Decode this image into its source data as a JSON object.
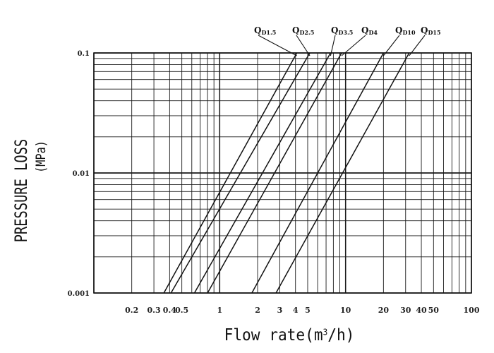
{
  "chart_data": {
    "type": "line",
    "xlabel_text": "Flow rate(m",
    "xlabel_sup": "3",
    "xlabel_tail": "/h)",
    "ylabel_line1": "PRESSURE LOSS",
    "ylabel_line2": "(MPa)",
    "x_scale": "log",
    "y_scale": "log",
    "xlim": [
      0.1,
      100
    ],
    "ylim": [
      0.001,
      0.1
    ],
    "grid": true,
    "x_tick_labels": [
      {
        "label": "0.2",
        "value": 0.2
      },
      {
        "label": "0.3",
        "value": 0.3
      },
      {
        "label": "0.4",
        "value": 0.4
      },
      {
        "label": "0.5",
        "value": 0.5
      },
      {
        "label": "1",
        "value": 1
      },
      {
        "label": "2",
        "value": 2
      },
      {
        "label": "3",
        "value": 3
      },
      {
        "label": "4",
        "value": 4
      },
      {
        "label": "5",
        "value": 5
      },
      {
        "label": "10",
        "value": 10
      },
      {
        "label": "20",
        "value": 20
      },
      {
        "label": "30",
        "value": 30
      },
      {
        "label": "40",
        "value": 40
      },
      {
        "label": "50",
        "value": 50
      },
      {
        "label": "100",
        "value": 100
      }
    ],
    "y_tick_labels": [
      {
        "label": "0.1",
        "value": 0.1
      },
      {
        "label": "0.01",
        "value": 0.01
      },
      {
        "label": "0.001",
        "value": 0.001
      }
    ],
    "series": [
      {
        "name_main": "Q",
        "name_sub": "D1.5",
        "x": [
          0.36,
          4.1
        ],
        "y": [
          0.001,
          0.1
        ]
      },
      {
        "name_main": "Q",
        "name_sub": "D2.5",
        "x": [
          0.41,
          5.2
        ],
        "y": [
          0.001,
          0.1
        ]
      },
      {
        "name_main": "Q",
        "name_sub": "D3.5",
        "x": [
          0.63,
          7.6
        ],
        "y": [
          0.001,
          0.1
        ]
      },
      {
        "name_main": "Q",
        "name_sub": "D4",
        "x": [
          0.8,
          9.3
        ],
        "y": [
          0.001,
          0.1
        ]
      },
      {
        "name_main": "Q",
        "name_sub": "D10",
        "x": [
          1.8,
          20
        ],
        "y": [
          0.001,
          0.1
        ]
      },
      {
        "name_main": "Q",
        "name_sub": "D15",
        "x": [
          2.8,
          32
        ],
        "y": [
          0.001,
          0.1
        ]
      }
    ]
  }
}
